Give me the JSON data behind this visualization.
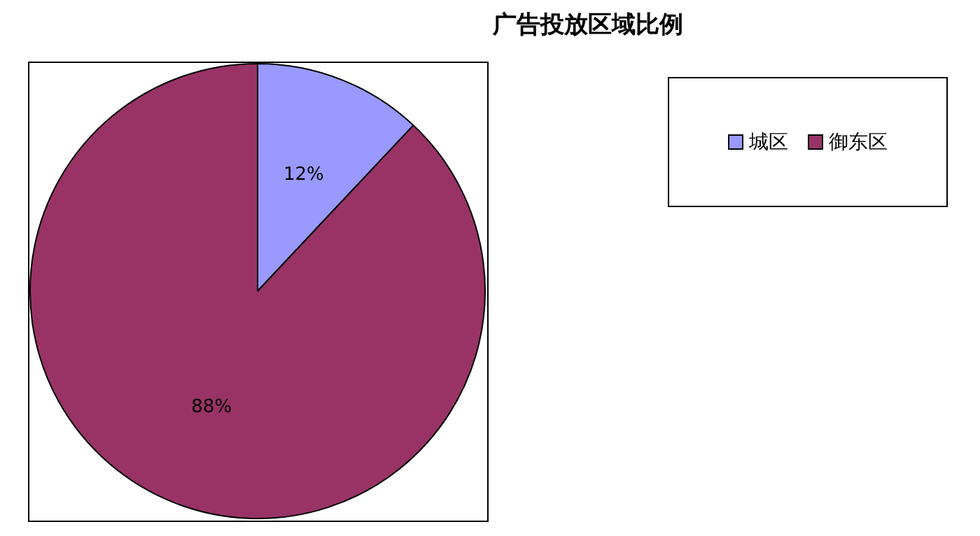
{
  "chart_data": {
    "type": "pie",
    "title": "广告投放区域比例",
    "categories": [
      "城区",
      "御东区"
    ],
    "values": [
      12,
      88
    ],
    "colors": [
      "#9999ff",
      "#993366"
    ],
    "value_labels": [
      "12%",
      "88%"
    ],
    "legend": "right"
  }
}
